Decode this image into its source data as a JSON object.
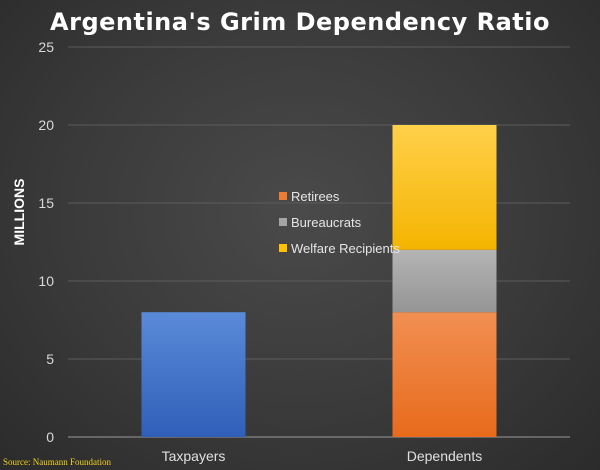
{
  "chart_data": {
    "type": "bar",
    "stacked": true,
    "title": "Argentina's Grim Dependency Ratio",
    "ylabel": "MILLIONS",
    "xlabel": "",
    "ylim": [
      0,
      25
    ],
    "yticks": [
      0,
      5,
      10,
      15,
      20,
      25
    ],
    "categories": [
      "Taxpayers",
      "Dependents"
    ],
    "series": [
      {
        "name": "Taxpayers",
        "values": [
          8,
          0
        ],
        "color": "#4472c4",
        "in_legend": false
      },
      {
        "name": "Retirees",
        "values": [
          0,
          8
        ],
        "color": "#ed7d31"
      },
      {
        "name": "Bureaucrats",
        "values": [
          0,
          4
        ],
        "color": "#a5a5a5"
      },
      {
        "name": "Welfare Recipients",
        "values": [
          0,
          8
        ],
        "color": "#ffc000"
      }
    ],
    "legend": {
      "position": "center",
      "items": [
        "Retirees",
        "Bureaucrats",
        "Welfare Recipients"
      ]
    },
    "grid": true,
    "source": "Source: Naumann Foundation"
  }
}
